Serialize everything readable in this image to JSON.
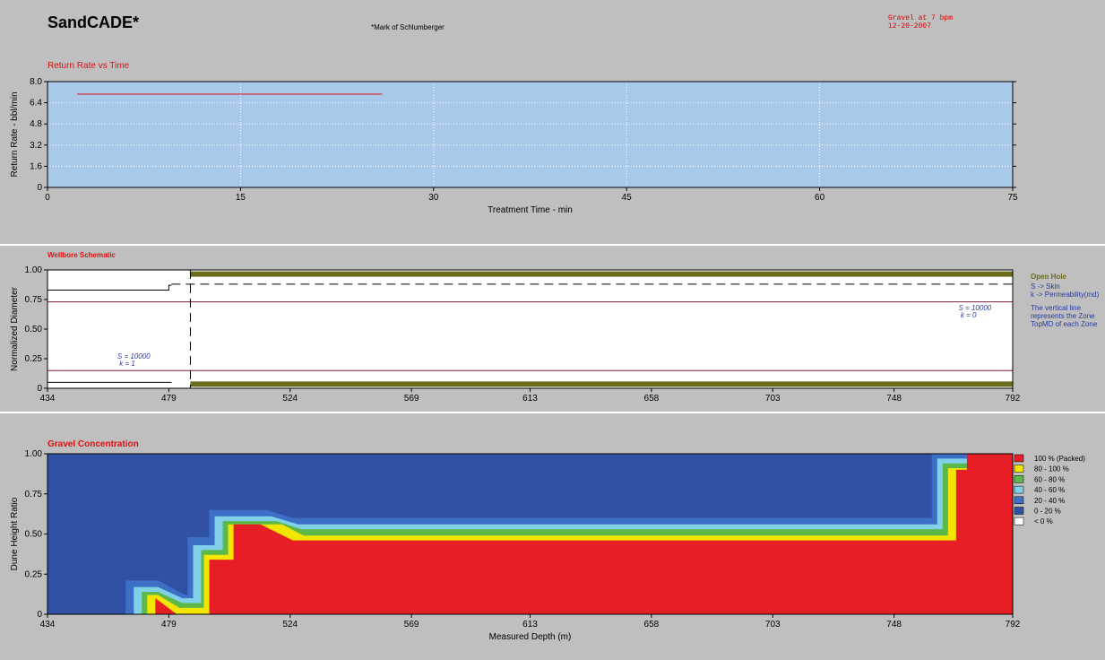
{
  "header": {
    "app_title": "SandCADE*",
    "trademark": "*Mark of Schlumberger",
    "run_title": "Gravel at 7 bpm",
    "run_date": "12-20-2007"
  },
  "colors": {
    "background": "#bfbfbf",
    "rate_panel": "#a9c9eb",
    "rate_line": "#e01010",
    "title_red": "#e01010",
    "olive": "#6b6b1e",
    "boundary": "#7a1f3d",
    "legend_blue": "#2a3d9a"
  },
  "chart_data": [
    {
      "type": "line",
      "title": "Return Rate vs Time",
      "xlabel": "Treatment Time - min",
      "ylabel": "Return Rate - bbl/min",
      "xlim": [
        0,
        75
      ],
      "ylim": [
        0,
        8
      ],
      "x_ticks": [
        "0",
        "15",
        "30",
        "45",
        "60",
        "75"
      ],
      "y_ticks": [
        "0",
        "1.6",
        "3.2",
        "4.8",
        "6.4",
        "8.0"
      ],
      "grid": true,
      "series": [
        {
          "x": [
            2.3,
            26.0
          ],
          "y": [
            7.05,
            7.05
          ]
        }
      ]
    },
    {
      "type": "line",
      "title": "Wellbore Schematic",
      "xlabel": "",
      "ylabel": "Normalized Diameter",
      "xlim": [
        434,
        792
      ],
      "ylim": [
        0,
        1
      ],
      "x_ticks": [
        "434",
        "479",
        "524",
        "569",
        "613",
        "658",
        "703",
        "748",
        "792"
      ],
      "y_ticks": [
        "0",
        "0.25",
        "0.50",
        "0.75",
        "1.00"
      ],
      "zone_boundary_md": 487,
      "zones": [
        {
          "skin_label": "S = 10000",
          "perm_label": "k = 1",
          "x": 466,
          "y": 0.25
        },
        {
          "skin_label": "S = 10000",
          "perm_label": "k = 0",
          "x": 778,
          "y": 0.66
        }
      ],
      "blank_pipe_upper": {
        "x": [
          434,
          479,
          479,
          480
        ],
        "y": [
          0.83,
          0.83,
          0.87,
          0.87
        ]
      },
      "blank_pipe_lower": {
        "x": [
          434,
          480
        ],
        "y": [
          0.05,
          0.05
        ]
      },
      "screen_line": {
        "x": [
          480,
          792
        ],
        "y": [
          0.88,
          0.88
        ]
      },
      "open_hole_upper": {
        "x": [
          487,
          792
        ],
        "y": 0.965
      },
      "open_hole_lower": {
        "x": [
          487,
          792
        ],
        "y": 0.035
      },
      "boundary_lines_y": [
        0.73,
        0.15
      ],
      "legend": {
        "open_hole": "Open Hole",
        "skin": "S -> Skin",
        "perm": "k -> Permeability(md)",
        "note_1": "The vertical line",
        "note_2": "represents the Zone",
        "note_3": "TopMD of each Zone"
      }
    },
    {
      "type": "area",
      "title": "Gravel Concentration",
      "xlabel": "Measured Depth (m)",
      "ylabel": "Dune Height Ratio",
      "xlim": [
        434,
        792
      ],
      "ylim": [
        0,
        1
      ],
      "x_ticks": [
        "434",
        "479",
        "524",
        "569",
        "613",
        "658",
        "703",
        "748",
        "792"
      ],
      "y_ticks": [
        "0",
        "0.25",
        "0.50",
        "0.75",
        "1.00"
      ],
      "background_band": "0 - 20 %",
      "bands": [
        {
          "name": "20 - 40 %",
          "color": "#3d6fc6",
          "points": [
            [
              463,
              0
            ],
            [
              463,
              0.21
            ],
            [
              475,
              0.21
            ],
            [
              485,
              0.12
            ],
            [
              486,
              0.12
            ],
            [
              486,
              0.48
            ],
            [
              494,
              0.48
            ],
            [
              494,
              0.65
            ],
            [
              515,
              0.65
            ],
            [
              525,
              0.6
            ],
            [
              762,
              0.6
            ],
            [
              762,
              1.0
            ],
            [
              792,
              1.0
            ],
            [
              792,
              0
            ]
          ]
        },
        {
          "name": "40 - 60 %",
          "color": "#7fd0e8",
          "points": [
            [
              466,
              0
            ],
            [
              466,
              0.17
            ],
            [
              475,
              0.17
            ],
            [
              484,
              0.1
            ],
            [
              488,
              0.1
            ],
            [
              488,
              0.43
            ],
            [
              496,
              0.43
            ],
            [
              496,
              0.61
            ],
            [
              517,
              0.61
            ],
            [
              527,
              0.56
            ],
            [
              764,
              0.56
            ],
            [
              764,
              0.97
            ],
            [
              792,
              0.97
            ],
            [
              792,
              0
            ]
          ]
        },
        {
          "name": "60 - 80 %",
          "color": "#5cb848",
          "points": [
            [
              469,
              0
            ],
            [
              469,
              0.14
            ],
            [
              475,
              0.14
            ],
            [
              484,
              0.07
            ],
            [
              491,
              0.07
            ],
            [
              491,
              0.4
            ],
            [
              499,
              0.4
            ],
            [
              499,
              0.58
            ],
            [
              519,
              0.58
            ],
            [
              528,
              0.53
            ],
            [
              766,
              0.53
            ],
            [
              766,
              0.94
            ],
            [
              792,
              0.94
            ],
            [
              792,
              0
            ]
          ]
        },
        {
          "name": "80 - 100 %",
          "color": "#f2e600",
          "points": [
            [
              471,
              0
            ],
            [
              471,
              0.12
            ],
            [
              475,
              0.12
            ],
            [
              483,
              0.04
            ],
            [
              492,
              0.04
            ],
            [
              492,
              0.37
            ],
            [
              501,
              0.37
            ],
            [
              501,
              0.56
            ],
            [
              521,
              0.56
            ],
            [
              529,
              0.49
            ],
            [
              768,
              0.49
            ],
            [
              768,
              0.91
            ],
            [
              792,
              0.91
            ],
            [
              792,
              0
            ]
          ]
        },
        {
          "name": "100 % (Packed)",
          "color": "#e81e26",
          "points": [
            [
              474,
              0
            ],
            [
              474,
              0.1
            ],
            [
              482,
              0
            ],
            [
              494,
              0
            ],
            [
              494,
              0.34
            ],
            [
              503,
              0.34
            ],
            [
              503,
              0.56
            ],
            [
              513,
              0.56
            ],
            [
              525,
              0.46
            ],
            [
              771,
              0.46
            ],
            [
              771,
              0.9
            ],
            [
              775,
              0.9
            ],
            [
              775,
              1.0
            ],
            [
              792,
              1.0
            ],
            [
              792,
              0
            ]
          ]
        }
      ],
      "legend": [
        {
          "label": "100 % (Packed)",
          "color": "#e81e26"
        },
        {
          "label": "80 - 100 %",
          "color": "#f2e600"
        },
        {
          "label": "60 - 80 %",
          "color": "#5cb848"
        },
        {
          "label": "40 - 60 %",
          "color": "#7fd0e8"
        },
        {
          "label": "20 - 40 %",
          "color": "#3d6fc6"
        },
        {
          "label": "0 - 20 %",
          "color": "#3152a4"
        },
        {
          "label": "< 0 %",
          "color": "#ffffff"
        }
      ]
    }
  ]
}
